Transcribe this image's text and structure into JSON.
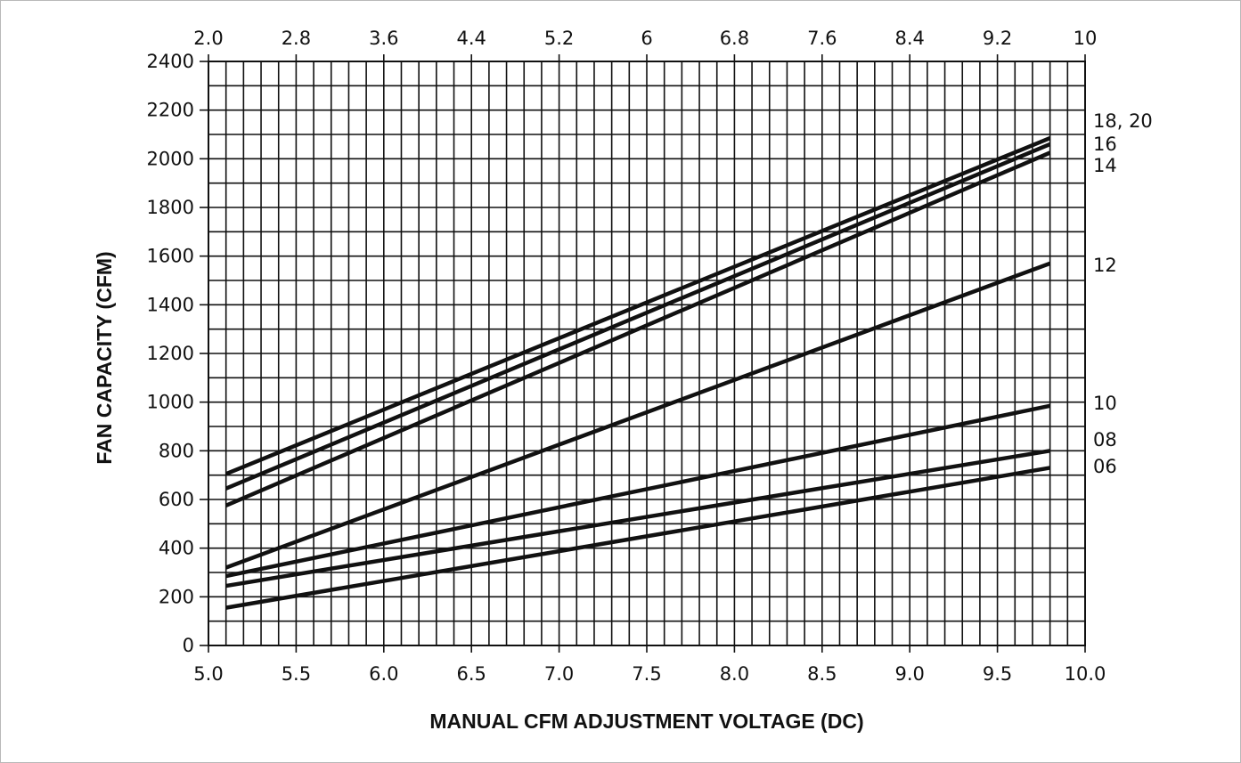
{
  "chart_data": {
    "type": "line",
    "xlabel": "MANUAL CFM ADJUSTMENT VOLTAGE (DC)",
    "ylabel": "FAN CAPACITY (CFM)",
    "xlim": [
      5.0,
      10.0
    ],
    "ylim": [
      0,
      2400
    ],
    "grid": true,
    "x_ticks": [
      "5.0",
      "5.5",
      "6.0",
      "6.5",
      "7.0",
      "7.5",
      "8.0",
      "8.5",
      "9.0",
      "9.5",
      "10.0"
    ],
    "x_top_ticks": [
      "2.0",
      "2.8",
      "3.6",
      "4.4",
      "5.2",
      "6",
      "6.8",
      "7.6",
      "8.4",
      "9.2",
      "10"
    ],
    "top_axis_range": [
      2.0,
      10.0
    ],
    "y_ticks": [
      "0",
      "200",
      "400",
      "600",
      "800",
      "1000",
      "1200",
      "1400",
      "1600",
      "1800",
      "2000",
      "2200",
      "2400"
    ],
    "series": [
      {
        "name": "18, 20",
        "x": [
          5.1,
          9.8
        ],
        "y": [
          705,
          2085
        ]
      },
      {
        "name": "16",
        "x": [
          5.1,
          9.8
        ],
        "y": [
          645,
          2060
        ]
      },
      {
        "name": "14",
        "x": [
          5.1,
          9.8
        ],
        "y": [
          575,
          2025
        ]
      },
      {
        "name": "12",
        "x": [
          5.1,
          9.8
        ],
        "y": [
          320,
          1570
        ]
      },
      {
        "name": "10",
        "x": [
          5.1,
          9.8
        ],
        "y": [
          285,
          985
        ]
      },
      {
        "name": "08",
        "x": [
          5.1,
          9.8
        ],
        "y": [
          245,
          800
        ]
      },
      {
        "name": "06",
        "x": [
          5.1,
          9.8
        ],
        "y": [
          155,
          730
        ]
      }
    ]
  }
}
